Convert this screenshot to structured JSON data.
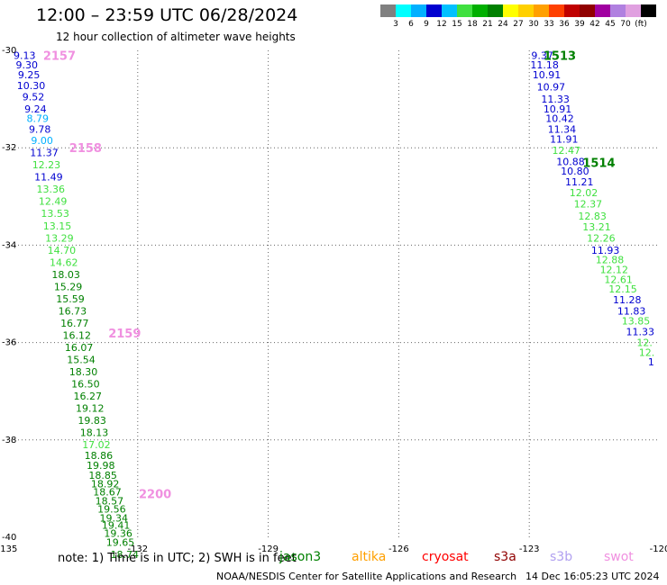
{
  "header": {
    "title": "12:00 – 23:59 UTC 06/28/2024",
    "subtitle": "12 hour collection of altimeter wave heights"
  },
  "colorbar": {
    "colors": [
      "#808080",
      "#00ffff",
      "#00b0ff",
      "#0000d0",
      "#00c0ff",
      "#40e040",
      "#00b000",
      "#008000",
      "#ffff00",
      "#ffd000",
      "#ffa000",
      "#ff4000",
      "#c00000",
      "#900000",
      "#a000a0",
      "#b080e0",
      "#e0a0e0",
      "#000000"
    ],
    "labels": [
      "3",
      "6",
      "9",
      "12",
      "15",
      "18",
      "21",
      "24",
      "27",
      "30",
      "33",
      "36",
      "39",
      "42",
      "45",
      "70",
      "(ft)"
    ]
  },
  "footer": {
    "note": "note: 1) Time is in UTC; 2) SWH is in feet",
    "credit": "NOAA/NESDIS Center for Satellite Applications and Research",
    "timestamp": "14 Dec 16:05:23 UTC 2024",
    "satellites": [
      {
        "name": "jason3",
        "color": "#008000"
      },
      {
        "name": "altika",
        "color": "#ffa000"
      },
      {
        "name": "cryosat",
        "color": "#ff0000"
      },
      {
        "name": "s3a",
        "color": "#900000"
      },
      {
        "name": "s3b",
        "color": "#b0a0f0"
      },
      {
        "name": "swot",
        "color": "#f090e0"
      }
    ]
  },
  "chart_data": {
    "type": "scatter",
    "title": "12:00 – 23:59 UTC 06/28/2024",
    "subtitle": "12 hour collection of altimeter wave heights",
    "xlim": [
      -135,
      -120
    ],
    "ylim": [
      -40,
      -30
    ],
    "x_ticks": [
      "-135",
      "-132",
      "-129",
      "-126",
      "-123",
      "-120"
    ],
    "y_ticks": [
      "-30",
      "-32",
      "-34",
      "-36",
      "-38",
      "-40"
    ],
    "grid": true,
    "units": "ft",
    "time_labels": [
      {
        "text": "2157",
        "lon": -133.8,
        "lat": -30.1,
        "color": "#f090e0"
      },
      {
        "text": "2158",
        "lon": -133.2,
        "lat": -32.0,
        "color": "#f090e0"
      },
      {
        "text": "2159",
        "lon": -132.3,
        "lat": -35.8,
        "color": "#f090e0"
      },
      {
        "text": "2200",
        "lon": -131.6,
        "lat": -39.1,
        "color": "#f090e0"
      },
      {
        "text": "1513",
        "lon": -122.3,
        "lat": -30.1,
        "color": "#008000"
      },
      {
        "text": "1514",
        "lon": -121.4,
        "lat": -32.3,
        "color": "#008000"
      }
    ],
    "series": [
      {
        "name": "swot",
        "points": [
          {
            "v": "9.13",
            "lon": -134.6,
            "lat": -30.1,
            "c": "#0000d0"
          },
          {
            "v": "9.30",
            "lon": -134.55,
            "lat": -30.3,
            "c": "#0000d0"
          },
          {
            "v": "9.25",
            "lon": -134.5,
            "lat": -30.5,
            "c": "#0000d0"
          },
          {
            "v": "10.30",
            "lon": -134.45,
            "lat": -30.72,
            "c": "#0000d0"
          },
          {
            "v": "9.52",
            "lon": -134.4,
            "lat": -30.95,
            "c": "#0000d0"
          },
          {
            "v": "9.24",
            "lon": -134.35,
            "lat": -31.2,
            "c": "#0000d0"
          },
          {
            "v": "8.79",
            "lon": -134.3,
            "lat": -31.4,
            "c": "#00b0ff"
          },
          {
            "v": "9.78",
            "lon": -134.25,
            "lat": -31.62,
            "c": "#0000d0"
          },
          {
            "v": "9.00",
            "lon": -134.2,
            "lat": -31.85,
            "c": "#00b0ff"
          },
          {
            "v": "11.37",
            "lon": -134.15,
            "lat": -32.1,
            "c": "#0000d0"
          },
          {
            "v": "12.23",
            "lon": -134.1,
            "lat": -32.35,
            "c": "#40e040"
          },
          {
            "v": "11.49",
            "lon": -134.05,
            "lat": -32.6,
            "c": "#0000d0"
          },
          {
            "v": "13.36",
            "lon": -134.0,
            "lat": -32.85,
            "c": "#40e040"
          },
          {
            "v": "12.49",
            "lon": -133.95,
            "lat": -33.1,
            "c": "#40e040"
          },
          {
            "v": "13.53",
            "lon": -133.9,
            "lat": -33.35,
            "c": "#40e040"
          },
          {
            "v": "13.15",
            "lon": -133.85,
            "lat": -33.6,
            "c": "#40e040"
          },
          {
            "v": "13.29",
            "lon": -133.8,
            "lat": -33.85,
            "c": "#40e040"
          },
          {
            "v": "14.70",
            "lon": -133.75,
            "lat": -34.1,
            "c": "#40e040"
          },
          {
            "v": "14.62",
            "lon": -133.7,
            "lat": -34.35,
            "c": "#40e040"
          },
          {
            "v": "18.03",
            "lon": -133.65,
            "lat": -34.6,
            "c": "#008000"
          },
          {
            "v": "15.29",
            "lon": -133.6,
            "lat": -34.85,
            "c": "#008000"
          },
          {
            "v": "15.59",
            "lon": -133.55,
            "lat": -35.1,
            "c": "#008000"
          },
          {
            "v": "16.73",
            "lon": -133.5,
            "lat": -35.35,
            "c": "#008000"
          },
          {
            "v": "16.77",
            "lon": -133.45,
            "lat": -35.6,
            "c": "#008000"
          },
          {
            "v": "16.12",
            "lon": -133.4,
            "lat": -35.85,
            "c": "#008000"
          },
          {
            "v": "16.07",
            "lon": -133.35,
            "lat": -36.1,
            "c": "#008000"
          },
          {
            "v": "15.54",
            "lon": -133.3,
            "lat": -36.35,
            "c": "#008000"
          },
          {
            "v": "18.30",
            "lon": -133.25,
            "lat": -36.6,
            "c": "#008000"
          },
          {
            "v": "16.50",
            "lon": -133.2,
            "lat": -36.85,
            "c": "#008000"
          },
          {
            "v": "16.27",
            "lon": -133.15,
            "lat": -37.1,
            "c": "#008000"
          },
          {
            "v": "19.12",
            "lon": -133.1,
            "lat": -37.35,
            "c": "#008000"
          },
          {
            "v": "19.83",
            "lon": -133.05,
            "lat": -37.6,
            "c": "#008000"
          },
          {
            "v": "18.13",
            "lon": -133.0,
            "lat": -37.85,
            "c": "#008000"
          },
          {
            "v": "17.02",
            "lon": -132.95,
            "lat": -38.1,
            "c": "#40e040"
          },
          {
            "v": "18.86",
            "lon": -132.9,
            "lat": -38.32,
            "c": "#008000"
          },
          {
            "v": "19.98",
            "lon": -132.85,
            "lat": -38.52,
            "c": "#008000"
          },
          {
            "v": "18.85",
            "lon": -132.8,
            "lat": -38.72,
            "c": "#008000"
          },
          {
            "v": "18.92",
            "lon": -132.75,
            "lat": -38.9,
            "c": "#008000"
          },
          {
            "v": "18.67",
            "lon": -132.7,
            "lat": -39.07,
            "c": "#008000"
          },
          {
            "v": "18.57",
            "lon": -132.65,
            "lat": -39.25,
            "c": "#008000"
          },
          {
            "v": "19.56",
            "lon": -132.6,
            "lat": -39.42,
            "c": "#008000"
          },
          {
            "v": "19.34",
            "lon": -132.55,
            "lat": -39.6,
            "c": "#008000"
          },
          {
            "v": "19.41",
            "lon": -132.5,
            "lat": -39.75,
            "c": "#008000"
          },
          {
            "v": "19.36",
            "lon": -132.45,
            "lat": -39.92,
            "c": "#008000"
          },
          {
            "v": "19.65",
            "lon": -132.4,
            "lat": -40.1,
            "c": "#008000"
          },
          {
            "v": "18.74",
            "lon": -132.3,
            "lat": -40.35,
            "c": "#008000"
          }
        ]
      },
      {
        "name": "jason3",
        "points": [
          {
            "v": "9.37",
            "lon": -122.7,
            "lat": -30.1,
            "c": "#0000d0"
          },
          {
            "v": "11.18",
            "lon": -122.65,
            "lat": -30.3,
            "c": "#0000d0"
          },
          {
            "v": "10.91",
            "lon": -122.6,
            "lat": -30.5,
            "c": "#0000d0"
          },
          {
            "v": "10.97",
            "lon": -122.5,
            "lat": -30.75,
            "c": "#0000d0"
          },
          {
            "v": "11.33",
            "lon": -122.4,
            "lat": -31.0,
            "c": "#0000d0"
          },
          {
            "v": "10.91",
            "lon": -122.35,
            "lat": -31.2,
            "c": "#0000d0"
          },
          {
            "v": "10.42",
            "lon": -122.3,
            "lat": -31.4,
            "c": "#0000d0"
          },
          {
            "v": "11.34",
            "lon": -122.25,
            "lat": -31.62,
            "c": "#0000d0"
          },
          {
            "v": "11.91",
            "lon": -122.2,
            "lat": -31.82,
            "c": "#0000d0"
          },
          {
            "v": "12.47",
            "lon": -122.15,
            "lat": -32.05,
            "c": "#40e040"
          },
          {
            "v": "10.88",
            "lon": -122.05,
            "lat": -32.28,
            "c": "#0000d0"
          },
          {
            "v": "10.80",
            "lon": -121.95,
            "lat": -32.48,
            "c": "#0000d0"
          },
          {
            "v": "11.21",
            "lon": -121.85,
            "lat": -32.7,
            "c": "#0000d0"
          },
          {
            "v": "12.02",
            "lon": -121.75,
            "lat": -32.92,
            "c": "#40e040"
          },
          {
            "v": "12.37",
            "lon": -121.65,
            "lat": -33.15,
            "c": "#40e040"
          },
          {
            "v": "12.83",
            "lon": -121.55,
            "lat": -33.4,
            "c": "#40e040"
          },
          {
            "v": "13.21",
            "lon": -121.45,
            "lat": -33.62,
            "c": "#40e040"
          },
          {
            "v": "12.26",
            "lon": -121.35,
            "lat": -33.85,
            "c": "#40e040"
          },
          {
            "v": "11.93",
            "lon": -121.25,
            "lat": -34.1,
            "c": "#0000d0"
          },
          {
            "v": "12.88",
            "lon": -121.15,
            "lat": -34.3,
            "c": "#40e040"
          },
          {
            "v": "12.12",
            "lon": -121.05,
            "lat": -34.5,
            "c": "#40e040"
          },
          {
            "v": "12.61",
            "lon": -120.95,
            "lat": -34.7,
            "c": "#40e040"
          },
          {
            "v": "12.15",
            "lon": -120.85,
            "lat": -34.9,
            "c": "#40e040"
          },
          {
            "v": "11.28",
            "lon": -120.75,
            "lat": -35.12,
            "c": "#0000d0"
          },
          {
            "v": "11.83",
            "lon": -120.65,
            "lat": -35.35,
            "c": "#0000d0"
          },
          {
            "v": "13.85",
            "lon": -120.55,
            "lat": -35.55,
            "c": "#40e040"
          },
          {
            "v": "11.33",
            "lon": -120.45,
            "lat": -35.78,
            "c": "#0000d0"
          },
          {
            "v": "12.",
            "lon": -120.35,
            "lat": -36.0,
            "c": "#40e040"
          },
          {
            "v": "12.",
            "lon": -120.3,
            "lat": -36.2,
            "c": "#40e040"
          },
          {
            "v": "1",
            "lon": -120.2,
            "lat": -36.4,
            "c": "#0000d0"
          }
        ]
      }
    ]
  }
}
